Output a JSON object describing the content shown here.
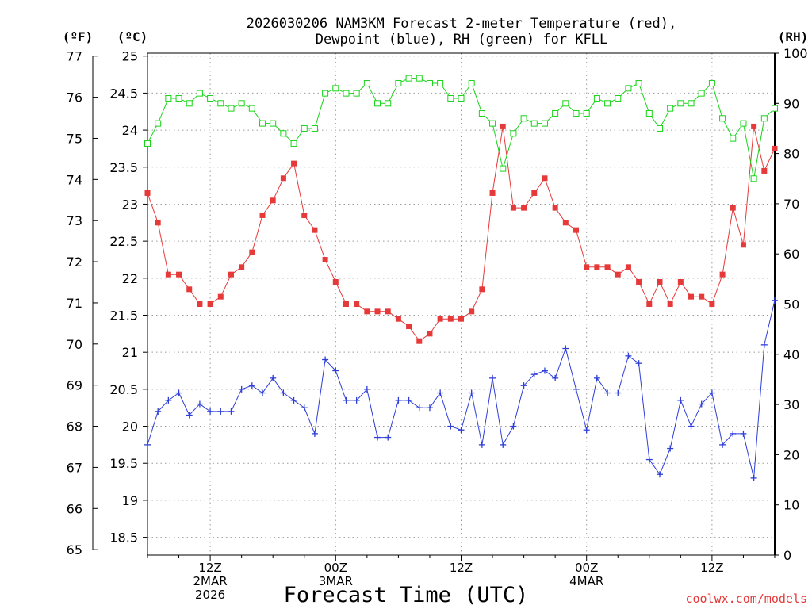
{
  "chart_data": {
    "type": "line",
    "title_line1": "2026030206 NAM3KM Forecast 2-meter Temperature (red),",
    "title_line2": "Dewpoint (blue), RH (green) for KFLL",
    "left_outer_unit": "(ºF)",
    "left_inner_unit": "(ºC)",
    "right_unit": "(RH)",
    "xlabel": "Forecast Time (UTC)",
    "credit": "coolwx.com/models",
    "x_ticks": [
      {
        "hour": 12,
        "lines": [
          "12Z",
          "2MAR",
          "2026"
        ]
      },
      {
        "hour": 24,
        "lines": [
          "00Z",
          "3MAR"
        ]
      },
      {
        "hour": 36,
        "lines": [
          "12Z"
        ]
      },
      {
        "hour": 48,
        "lines": [
          "00Z",
          "4MAR"
        ]
      },
      {
        "hour": 60,
        "lines": [
          "12Z"
        ]
      }
    ],
    "x_range_hours": [
      6,
      66
    ],
    "celsius_range": [
      18.26,
      25.04
    ],
    "celsius_ticks": [
      "18.5",
      "19",
      "19.5",
      "20",
      "20.5",
      "21",
      "21.5",
      "22",
      "22.5",
      "23",
      "23.5",
      "24",
      "24.5",
      "25"
    ],
    "fahrenheit_ticks": [
      "65",
      "66",
      "67",
      "68",
      "69",
      "70",
      "71",
      "72",
      "73",
      "74",
      "75",
      "76",
      "77"
    ],
    "rh_range": [
      0,
      100
    ],
    "rh_ticks": [
      "0",
      "10",
      "20",
      "30",
      "40",
      "50",
      "60",
      "70",
      "80",
      "90",
      "100"
    ],
    "grid": true,
    "series": [
      {
        "name": "Temperature",
        "unit": "C",
        "color": "#e63a3a",
        "marker": "filled-square",
        "start_hour": 6,
        "step_hours": 1,
        "values": [
          23.15,
          22.75,
          22.05,
          22.05,
          21.85,
          21.65,
          21.65,
          21.75,
          22.05,
          22.15,
          22.35,
          22.85,
          23.05,
          23.35,
          23.55,
          22.85,
          22.65,
          22.25,
          21.95,
          21.65,
          21.65,
          21.55,
          21.55,
          21.55,
          21.45,
          21.35,
          21.15,
          21.25,
          21.45,
          21.45,
          21.45,
          21.55,
          21.85,
          23.15,
          24.05,
          22.95,
          22.95,
          23.15,
          23.35,
          22.95,
          22.75,
          22.65,
          22.15,
          22.15,
          22.15,
          22.05,
          22.15,
          21.95,
          21.65,
          21.95,
          21.65,
          21.95,
          21.75,
          21.75,
          21.65,
          22.05,
          22.95,
          22.45,
          24.05,
          23.45,
          23.75
        ]
      },
      {
        "name": "Dewpoint",
        "unit": "C",
        "color": "#2e3ed8",
        "marker": "plus",
        "start_hour": 6,
        "step_hours": 1,
        "values": [
          19.75,
          20.2,
          20.35,
          20.45,
          20.15,
          20.3,
          20.2,
          20.2,
          20.2,
          20.5,
          20.55,
          20.45,
          20.65,
          20.45,
          20.35,
          20.25,
          19.9,
          20.9,
          20.75,
          20.35,
          20.35,
          20.5,
          19.85,
          19.85,
          20.35,
          20.35,
          20.25,
          20.25,
          20.45,
          20.0,
          19.95,
          20.45,
          19.75,
          20.65,
          19.75,
          20.0,
          20.55,
          20.7,
          20.75,
          20.65,
          21.05,
          20.5,
          19.95,
          20.65,
          20.45,
          20.45,
          20.95,
          20.85,
          19.55,
          19.35,
          19.7,
          20.35,
          20.0,
          20.3,
          20.45,
          19.75,
          19.9,
          19.9,
          19.3,
          21.1,
          21.7
        ]
      },
      {
        "name": "RH",
        "unit": "%",
        "color": "#19d419",
        "marker": "open-square",
        "start_hour": 6,
        "step_hours": 1,
        "values": [
          82,
          86,
          91,
          91,
          90,
          92,
          91,
          90,
          89,
          90,
          89,
          86,
          86,
          84,
          82,
          85,
          85,
          92,
          93,
          92,
          92,
          94,
          90,
          90,
          94,
          95,
          95,
          94,
          94,
          91,
          91,
          94,
          88,
          86,
          77,
          84,
          87,
          86,
          86,
          88,
          90,
          88,
          88,
          91,
          90,
          91,
          93,
          94,
          88,
          85,
          89,
          90,
          90,
          92,
          94,
          87,
          83,
          86,
          75,
          87,
          89
        ]
      }
    ]
  }
}
